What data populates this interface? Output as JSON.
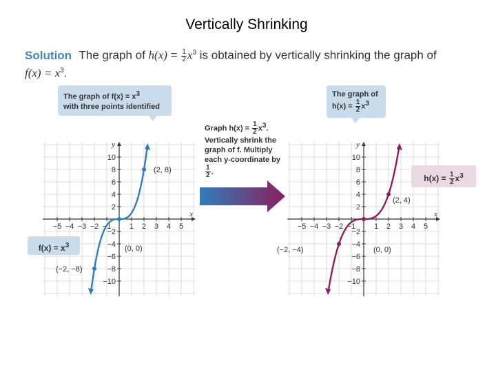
{
  "slide_title": "Vertically Shrinking",
  "solution": {
    "heading": "Solution",
    "text_before": "The graph of",
    "h_func": "h(x)",
    "eq": "=",
    "frac_num": "1",
    "frac_den": "2",
    "x_power": "x",
    "exp": "3",
    "text_after": "is obtained by vertically shrinking the graph of",
    "f_func": "f(x) = x",
    "f_exp": "3",
    "end": "."
  },
  "callout_left": {
    "line1": "The graph of f(x) = x",
    "line1_exp": "3",
    "line2": "with three points identified"
  },
  "callout_right": {
    "line1": "The graph of",
    "line2": "h(x) =",
    "frac_num": "1",
    "frac_den": "2",
    "x": "x",
    "exp": "3"
  },
  "instruction": {
    "line1_pre": "Graph h(x) =",
    "frac_num": "1",
    "frac_den": "2",
    "x": "x",
    "exp": "3",
    "line1_post": ".",
    "line2": "Vertically shrink the",
    "line3": "graph of f. Multiply",
    "line4": "each y-coordinate by",
    "line4_end": "."
  },
  "fx_label": {
    "text": "f(x) = x",
    "exp": "3"
  },
  "hx_label": {
    "pre": "h(x) =",
    "frac_num": "1",
    "frac_den": "2",
    "x": "x",
    "exp": "3"
  },
  "colors": {
    "f_curve": "#2f7dbd",
    "h_curve": "#8b1f5c",
    "callout_blue": "#c9dceb",
    "callout_pink": "#ead8e2",
    "solution_head": "#3a86c8"
  },
  "chart_data": [
    {
      "type": "line",
      "xlabel": "x",
      "ylabel": "y",
      "xlim": [
        -6,
        6
      ],
      "ylim": [
        -12,
        12
      ],
      "x_ticks": [
        -5,
        -4,
        -3,
        -2,
        -1,
        1,
        2,
        3,
        4,
        5
      ],
      "y_ticks": [
        -10,
        -8,
        -6,
        -4,
        -2,
        2,
        4,
        6,
        8,
        10
      ],
      "grid": true,
      "series": [
        {
          "name": "f(x) = x³",
          "coefficient": 1,
          "exponent": 3
        }
      ],
      "points": [
        {
          "x": -2,
          "y": -8,
          "label": "(−2, −8)"
        },
        {
          "x": 0,
          "y": 0,
          "label": "(0, 0)"
        },
        {
          "x": 2,
          "y": 8,
          "label": "(2, 8)"
        }
      ]
    },
    {
      "type": "line",
      "xlabel": "x",
      "ylabel": "y",
      "xlim": [
        -6,
        6
      ],
      "ylim": [
        -12,
        12
      ],
      "x_ticks": [
        -5,
        -4,
        -3,
        -2,
        -1,
        1,
        2,
        3,
        4,
        5
      ],
      "y_ticks": [
        -10,
        -8,
        -6,
        -4,
        -2,
        2,
        4,
        6,
        8,
        10
      ],
      "grid": true,
      "series": [
        {
          "name": "h(x) = ½x³",
          "coefficient": 0.5,
          "exponent": 3
        }
      ],
      "points": [
        {
          "x": -2,
          "y": -4,
          "label": "(−2, −4)"
        },
        {
          "x": 0,
          "y": 0,
          "label": "(0, 0)"
        },
        {
          "x": 2,
          "y": 4,
          "label": "(2, 4)"
        }
      ]
    }
  ]
}
